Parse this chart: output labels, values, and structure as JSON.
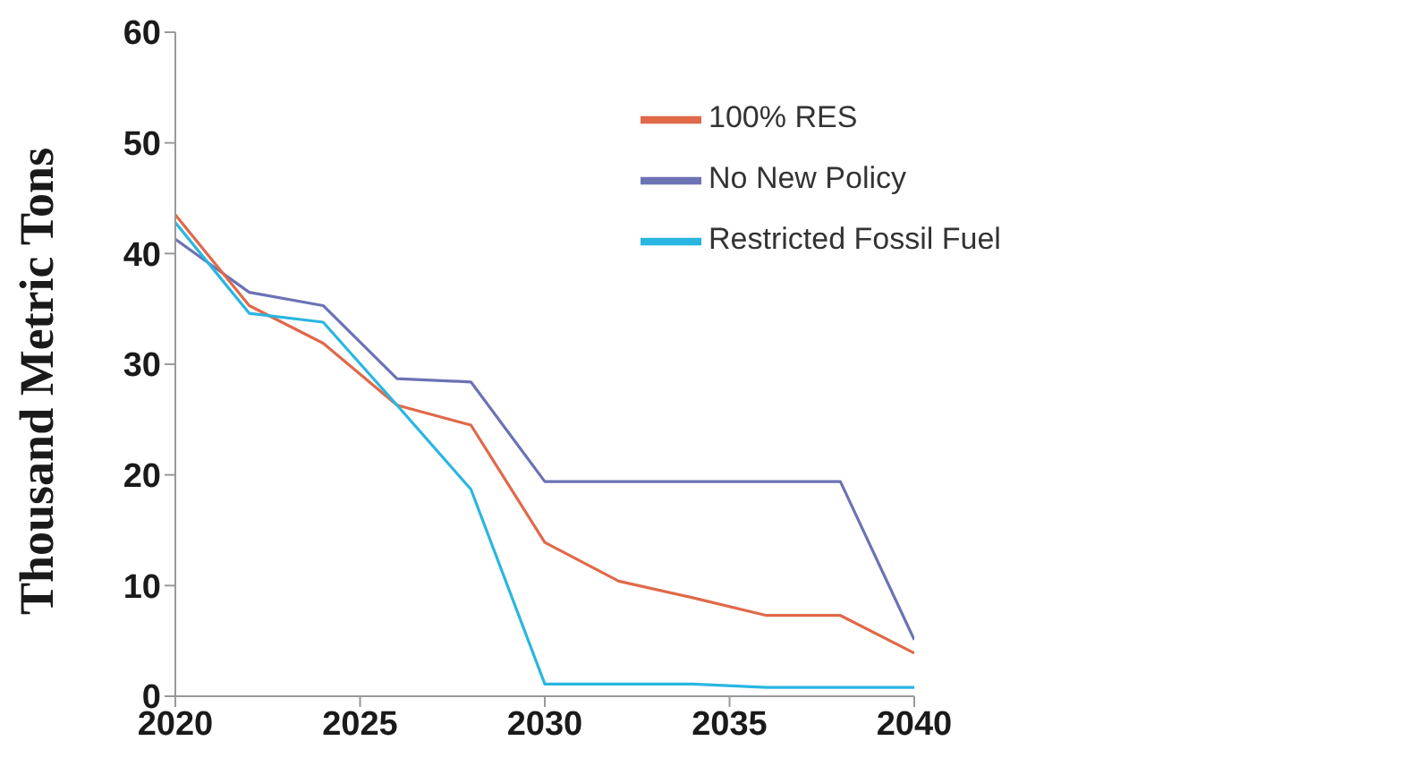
{
  "chart_data": {
    "type": "line",
    "ylabel": "Thousand Metric Tons",
    "x": [
      2020,
      2022,
      2024,
      2026,
      2028,
      2030,
      2032,
      2034,
      2036,
      2038,
      2040
    ],
    "series": [
      {
        "name": "No New Policy",
        "color": "#6b73b5",
        "values": [
          41.3,
          36.5,
          35.3,
          28.7,
          28.4,
          19.4,
          19.4,
          19.4,
          19.4,
          19.4,
          5.1
        ]
      },
      {
        "name": "100% RES",
        "color": "#e0694a",
        "values": [
          43.5,
          35.3,
          31.9,
          26.3,
          24.5,
          13.9,
          10.4,
          8.9,
          7.3,
          7.3,
          3.9
        ]
      },
      {
        "name": "Restricted Fossil Fuel",
        "color": "#29b6e0",
        "values": [
          42.8,
          34.6,
          33.8,
          26.3,
          18.7,
          1.1,
          1.1,
          1.1,
          0.8,
          0.8,
          0.8
        ]
      }
    ],
    "xlim": [
      2020,
      2040
    ],
    "xticks": [
      2020,
      2025,
      2030,
      2035,
      2040
    ],
    "ylim": [
      0,
      60
    ],
    "yticks": [
      0,
      10,
      20,
      30,
      40,
      50,
      60
    ],
    "grid": false,
    "legend": "top right",
    "marker": "none",
    "line_style": "solid"
  }
}
